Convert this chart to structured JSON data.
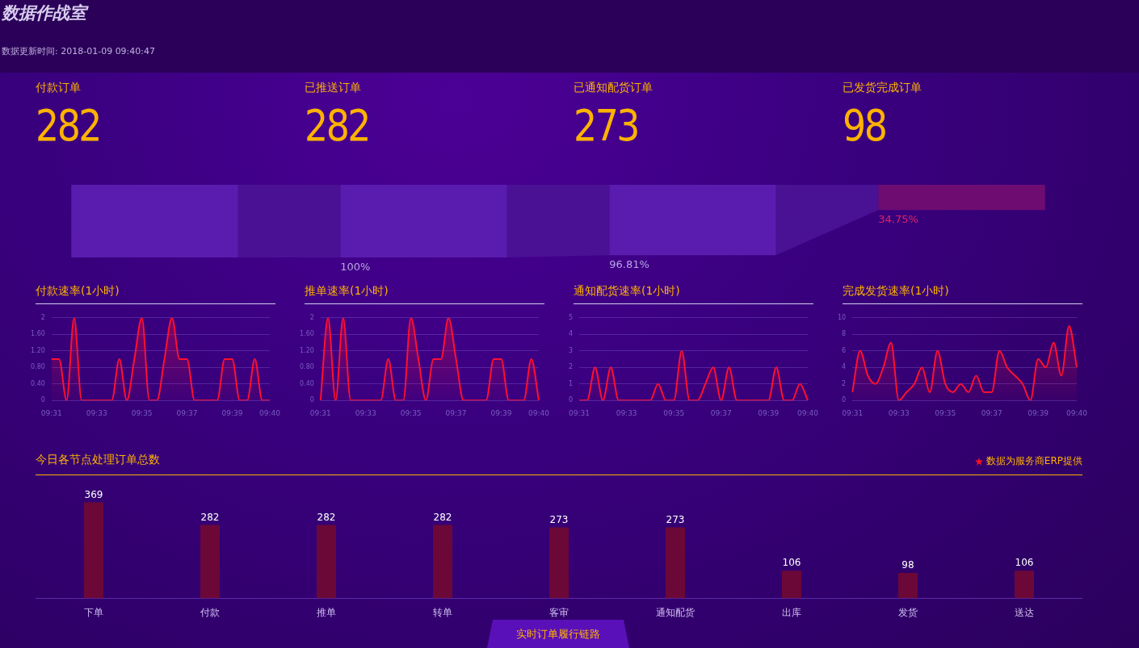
{
  "chart_data": [
    {
      "type": "other",
      "title": "数据作战室",
      "subtitle": "数据更新时间: 2018-01-09 09:40:47",
      "categories": [
        "付款订单",
        "已推送订单",
        "已通知配货订单",
        "已发货完成订单"
      ],
      "values": [
        282,
        282,
        273,
        98
      ],
      "colors": [
        "#5a1cae",
        "#5a1cae",
        "#5a1cae",
        "#6e0c72"
      ],
      "data_labels": true,
      "annotations": [
        "100%",
        "96.81%",
        "34.75%"
      ]
    },
    {
      "type": "area",
      "title": "付款速率(1小时)",
      "categories": [
        "09:31",
        null,
        null,
        null,
        null,
        null,
        "09:33",
        null,
        null,
        null,
        null,
        null,
        "09:35",
        null,
        null,
        null,
        null,
        null,
        "09:37",
        null,
        null,
        null,
        null,
        null,
        "09:39",
        null,
        null,
        null,
        null,
        "09:40"
      ],
      "values": [
        1,
        1,
        0,
        2,
        0,
        0,
        0,
        0,
        0,
        1,
        0,
        1,
        2,
        0,
        0,
        1,
        2,
        1,
        1,
        0,
        0,
        0,
        0,
        1,
        1,
        0,
        0,
        1,
        0,
        0
      ],
      "color": "#ff1030",
      "ylim": [
        0,
        2
      ],
      "yticks": [
        0,
        {
          "value": 0.4,
          "label": "0.40"
        },
        {
          "value": 0.8,
          "label": "0.80"
        },
        {
          "value": 1.2,
          "label": "1.20"
        },
        {
          "value": 1.6,
          "label": "1.60"
        },
        2
      ],
      "grid": "y"
    },
    {
      "type": "area",
      "title": "推单速率(1小时)",
      "categories": [
        "09:31",
        null,
        null,
        null,
        null,
        null,
        "09:33",
        null,
        null,
        null,
        null,
        null,
        "09:35",
        null,
        null,
        null,
        null,
        null,
        "09:37",
        null,
        null,
        null,
        null,
        null,
        "09:39",
        null,
        null,
        null,
        null,
        "09:40"
      ],
      "values": [
        0,
        2,
        0,
        2,
        0,
        0,
        0,
        0,
        0,
        1,
        0,
        0,
        2,
        1,
        0,
        1,
        1,
        2,
        1,
        0,
        0,
        0,
        0,
        1,
        1,
        0,
        0,
        0,
        1,
        0
      ],
      "color": "#ff1030",
      "ylim": [
        0,
        2
      ],
      "yticks": [
        0,
        {
          "value": 0.4,
          "label": "0.40"
        },
        {
          "value": 0.8,
          "label": "0.80"
        },
        {
          "value": 1.2,
          "label": "1.20"
        },
        {
          "value": 1.6,
          "label": "1.60"
        },
        2
      ],
      "grid": "y"
    },
    {
      "type": "area",
      "title": "通知配货速率(1小时)",
      "categories": [
        "09:31",
        null,
        null,
        null,
        null,
        null,
        "09:33",
        null,
        null,
        null,
        null,
        null,
        "09:35",
        null,
        null,
        null,
        null,
        null,
        "09:37",
        null,
        null,
        null,
        null,
        null,
        "09:39",
        null,
        null,
        null,
        null,
        "09:40"
      ],
      "values": [
        0,
        0,
        2,
        0,
        2,
        0,
        0,
        0,
        0,
        0,
        1,
        0,
        0,
        3,
        0,
        0,
        1,
        2,
        0,
        2,
        0,
        0,
        0,
        0,
        0,
        2,
        0,
        0,
        1,
        0
      ],
      "color": "#ff1030",
      "ylim": [
        0,
        5
      ],
      "yticks": [
        0,
        1,
        2,
        3,
        4,
        5
      ],
      "grid": "y"
    },
    {
      "type": "area",
      "title": "完成发货速率(1小时)",
      "categories": [
        "09:31",
        null,
        null,
        null,
        null,
        null,
        "09:33",
        null,
        null,
        null,
        null,
        null,
        "09:35",
        null,
        null,
        null,
        null,
        null,
        "09:37",
        null,
        null,
        null,
        null,
        null,
        "09:39",
        null,
        null,
        null,
        null,
        "09:40"
      ],
      "values": [
        1,
        6,
        3,
        2,
        4,
        7,
        0,
        1,
        2,
        4,
        1,
        6,
        2,
        1,
        2,
        1,
        3,
        1,
        1,
        6,
        4,
        3,
        2,
        0,
        5,
        4,
        7,
        3,
        9,
        4
      ],
      "color": "#ff1030",
      "ylim": [
        0,
        10
      ],
      "yticks": [
        0,
        2,
        4,
        6,
        8,
        10
      ],
      "grid": "y"
    },
    {
      "type": "bar",
      "title": "今日各节点处理订单总数",
      "categories": [
        "下单",
        "付款",
        "推单",
        "转单",
        "客审",
        "通知配货",
        "出库",
        "发货",
        "送达"
      ],
      "values": [
        369,
        282,
        282,
        282,
        273,
        273,
        106,
        98,
        106
      ],
      "color": "#6b0838",
      "data_labels": true,
      "annotations": [
        "数据为服务商ERP提供",
        "实时订单履行链路"
      ]
    }
  ]
}
